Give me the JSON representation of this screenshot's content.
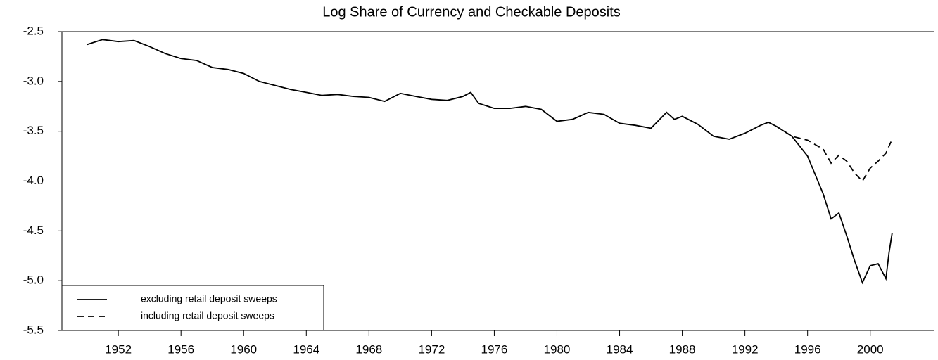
{
  "chart_data": {
    "type": "line",
    "title": "Log Share of Currency and Checkable Deposits",
    "x": [
      1950,
      1951,
      1952,
      1953,
      1954,
      1955,
      1956,
      1957,
      1958,
      1959,
      1960,
      1961,
      1962,
      1963,
      1964,
      1965,
      1966,
      1967,
      1968,
      1969,
      1970,
      1971,
      1972,
      1973,
      1974,
      1974.5,
      1975,
      1976,
      1977,
      1978,
      1979,
      1980,
      1981,
      1982,
      1983,
      1984,
      1985,
      1986,
      1987,
      1987.5,
      1988,
      1989,
      1990,
      1991,
      1992,
      1993,
      1993.5,
      1994,
      1995,
      1996,
      1997,
      1997.5,
      1998,
      1998.5,
      1999,
      1999.5,
      2000,
      2000.5,
      2001,
      2001.2,
      2001.4
    ],
    "series": [
      {
        "name": "excluding retail deposit sweeps",
        "color": "#000000",
        "dash": false,
        "values": [
          -2.63,
          -2.58,
          -2.6,
          -2.59,
          -2.65,
          -2.72,
          -2.77,
          -2.79,
          -2.86,
          -2.88,
          -2.92,
          -3.0,
          -3.04,
          -3.08,
          -3.11,
          -3.14,
          -3.13,
          -3.15,
          -3.16,
          -3.2,
          -3.12,
          -3.15,
          -3.18,
          -3.19,
          -3.15,
          -3.11,
          -3.22,
          -3.27,
          -3.27,
          -3.25,
          -3.28,
          -3.4,
          -3.38,
          -3.31,
          -3.33,
          -3.42,
          -3.44,
          -3.47,
          -3.31,
          -3.38,
          -3.35,
          -3.43,
          -3.55,
          -3.58,
          -3.52,
          -3.44,
          -3.41,
          -3.45,
          -3.55,
          -3.75,
          -4.13,
          -4.38,
          -4.32,
          -4.55,
          -4.8,
          -5.02,
          -4.85,
          -4.83,
          -4.98,
          -4.72,
          -4.52
        ]
      },
      {
        "name": "including retail deposit sweeps",
        "color": "#000000",
        "dash": true,
        "values": [
          null,
          null,
          null,
          null,
          null,
          null,
          null,
          null,
          null,
          null,
          null,
          null,
          null,
          null,
          null,
          null,
          null,
          null,
          null,
          null,
          null,
          null,
          null,
          null,
          null,
          null,
          null,
          null,
          null,
          null,
          null,
          null,
          null,
          null,
          null,
          null,
          null,
          null,
          null,
          null,
          null,
          null,
          null,
          null,
          null,
          null,
          null,
          -3.45,
          -3.55,
          -3.59,
          -3.68,
          -3.82,
          -3.74,
          -3.8,
          -3.92,
          -4.0,
          -3.87,
          -3.8,
          -3.72,
          -3.65,
          -3.58
        ]
      }
    ],
    "xlim": [
      1948.4,
      2004.1
    ],
    "xticks": [
      1952,
      1956,
      1960,
      1964,
      1968,
      1972,
      1976,
      1980,
      1984,
      1988,
      1992,
      1996,
      2000
    ],
    "ylim": [
      -5.5,
      -2.5
    ],
    "yticks": [
      {
        "value": -5.5,
        "label": "-5.5"
      },
      {
        "value": -5.0,
        "label": "-5.0"
      },
      {
        "value": -4.5,
        "label": "-4.5"
      },
      {
        "value": -4.0,
        "label": "-4.0"
      },
      {
        "value": -3.5,
        "label": "-3.5"
      },
      {
        "value": -3.0,
        "label": "-3.0"
      },
      {
        "value": -2.5,
        "label": "-2.5"
      }
    ],
    "grid": false,
    "legend": "lower left"
  }
}
